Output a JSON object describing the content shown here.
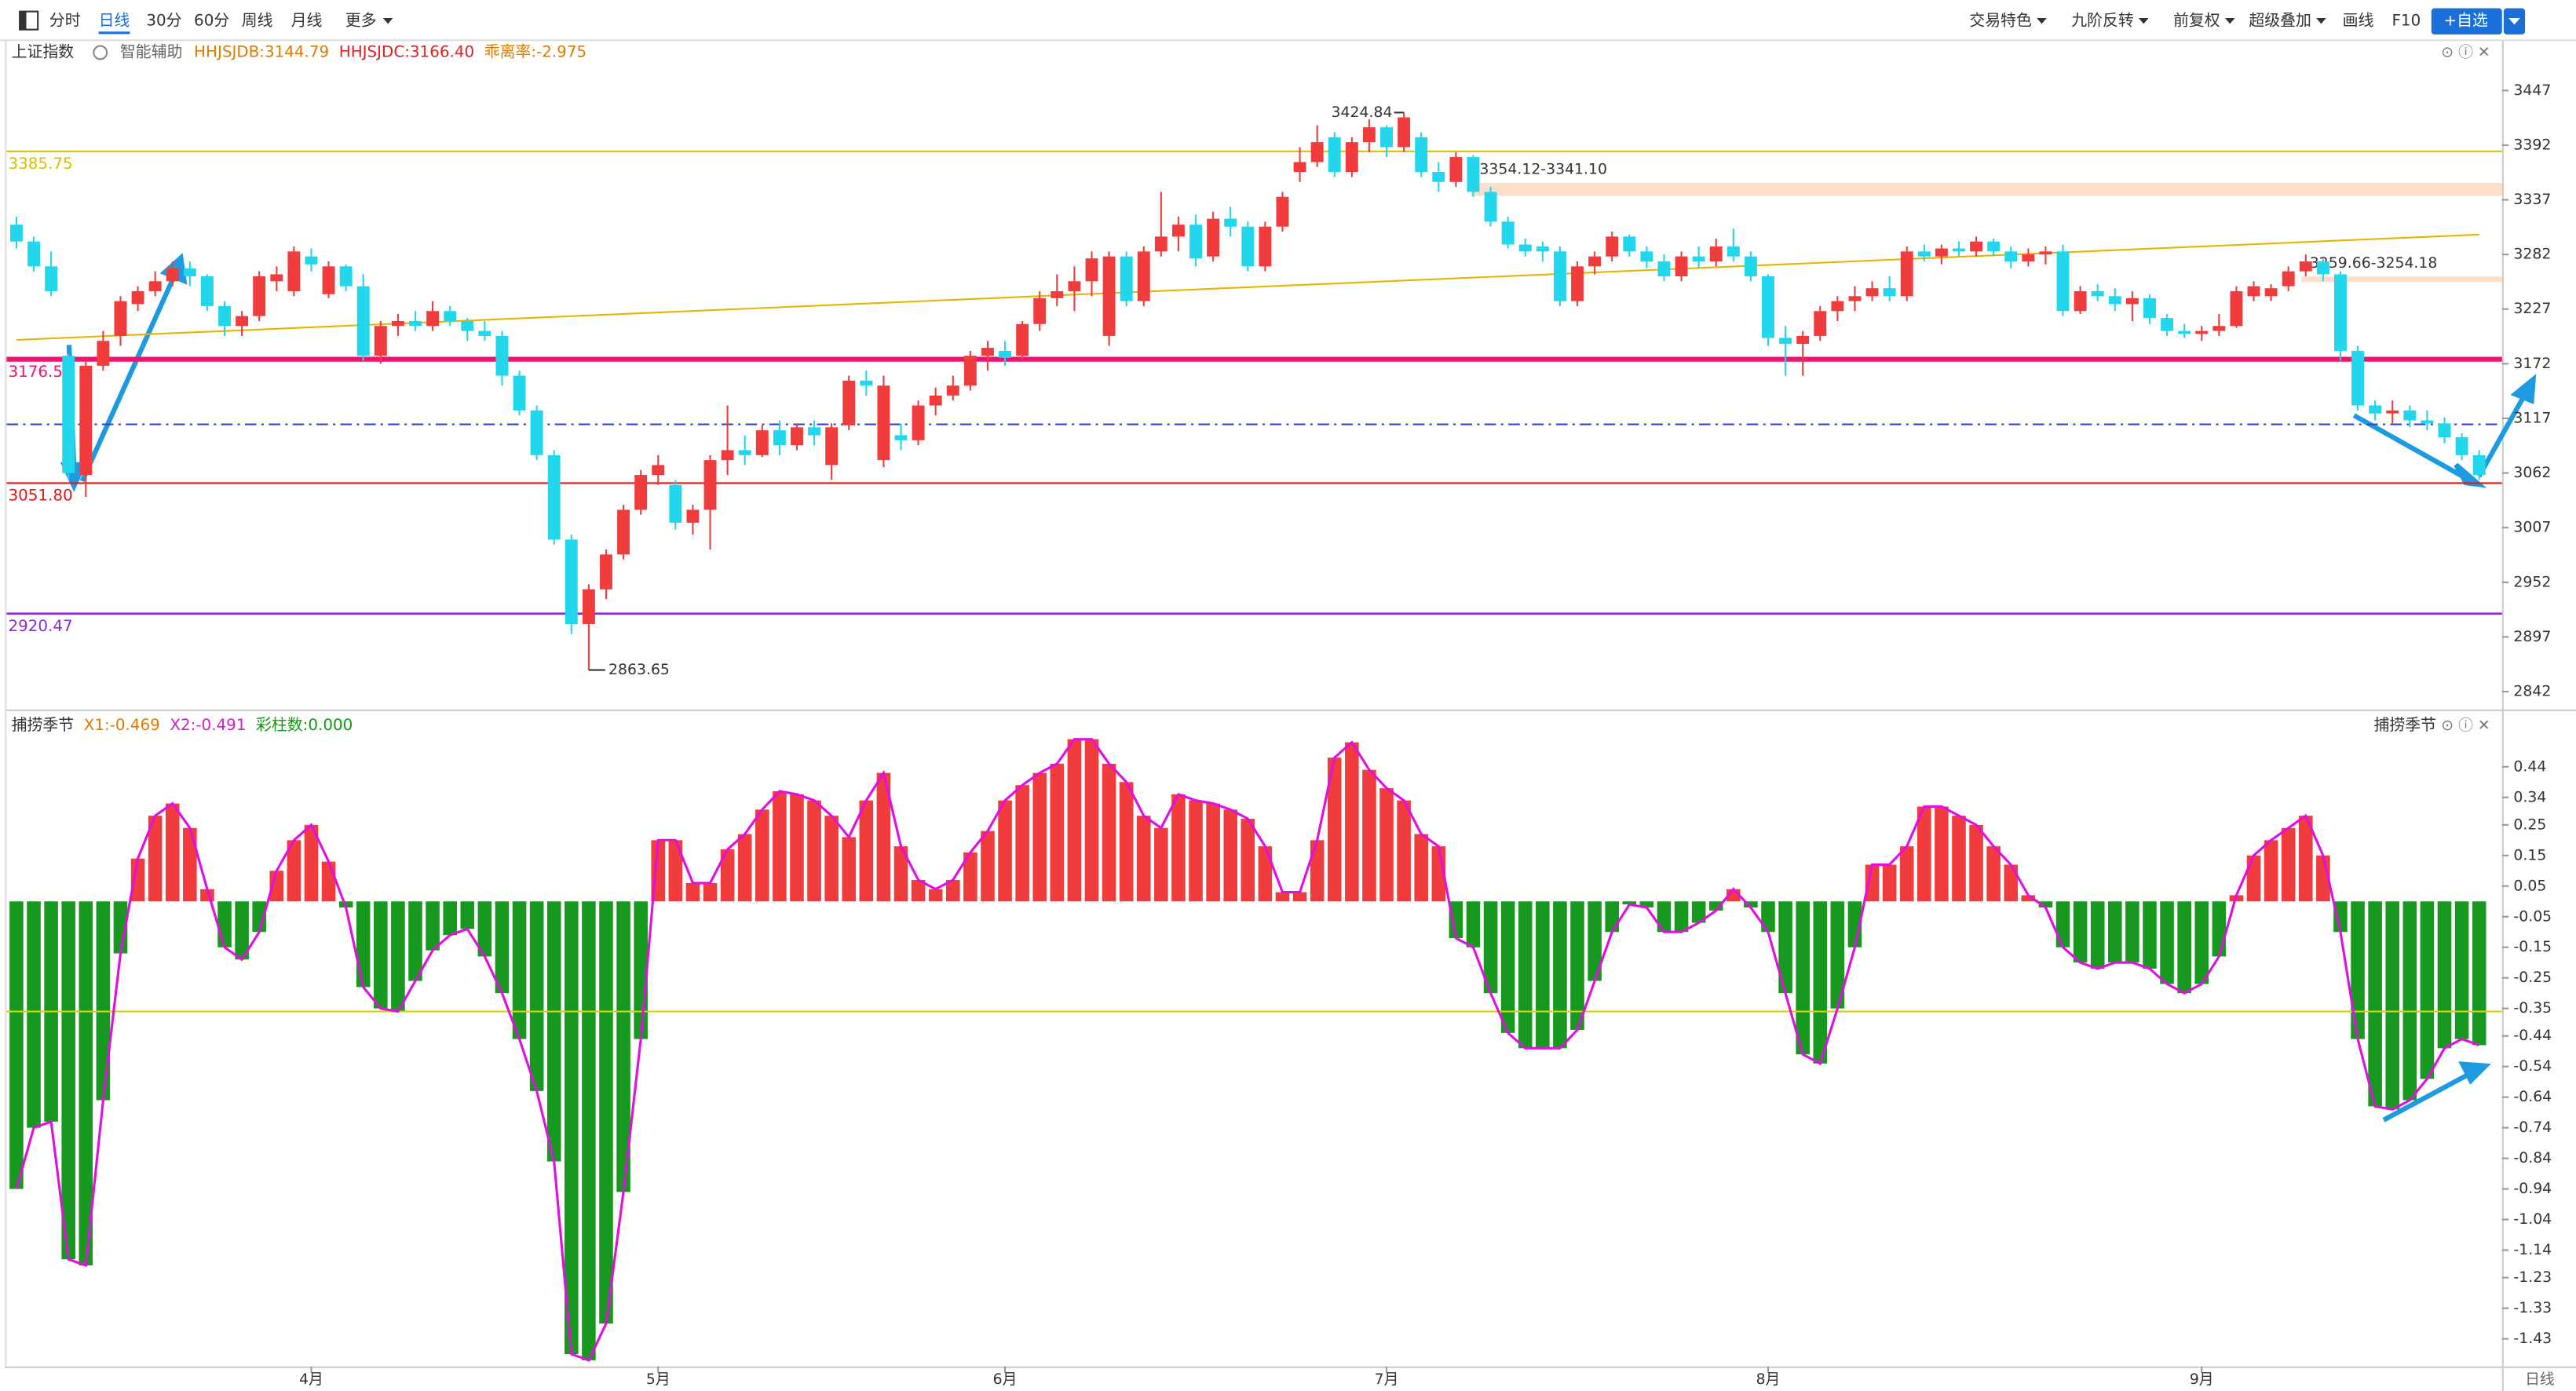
{
  "toolbar": {
    "periods": [
      "分时",
      "日线",
      "30分",
      "60分",
      "周线",
      "月线",
      "更多"
    ],
    "tools": [
      "交易特色",
      "九阶反转",
      "前复权",
      "超级叠加",
      "画线",
      "F10"
    ],
    "button": "+自选"
  },
  "chart_data": [
    {
      "type": "candlestick",
      "title": "上证指数",
      "subtitle": "智能辅助",
      "indicators": [
        {
          "text": "HHJSJDB:3144.79",
          "color": "#e07b00"
        },
        {
          "text": "HHJSJDC:3166.40",
          "color": "#e02020"
        },
        {
          "text": "乖离率:-2.975",
          "color": "#e07b00"
        }
      ],
      "categories": [
        null,
        null,
        null,
        null,
        null,
        null,
        null,
        null,
        null,
        null,
        null,
        null,
        null,
        null,
        null,
        null,
        null,
        "4月",
        null,
        null,
        null,
        null,
        null,
        null,
        null,
        null,
        null,
        null,
        null,
        null,
        null,
        null,
        null,
        null,
        null,
        null,
        null,
        "5月",
        null,
        null,
        null,
        null,
        null,
        null,
        null,
        null,
        null,
        null,
        null,
        null,
        null,
        null,
        null,
        null,
        null,
        null,
        null,
        "6月",
        null,
        null,
        null,
        null,
        null,
        null,
        null,
        null,
        null,
        null,
        null,
        null,
        null,
        null,
        null,
        null,
        null,
        null,
        null,
        null,
        null,
        "7月",
        null,
        null,
        null,
        null,
        null,
        null,
        null,
        null,
        null,
        null,
        null,
        null,
        null,
        null,
        null,
        null,
        null,
        null,
        null,
        null,
        null,
        "8月",
        null,
        null,
        null,
        null,
        null,
        null,
        null,
        null,
        null,
        null,
        null,
        null,
        null,
        null,
        null,
        null,
        null,
        null,
        null,
        null,
        null,
        null,
        null,
        null,
        "9月",
        null,
        null,
        null,
        null,
        null,
        null,
        null,
        null,
        null,
        null,
        null,
        null,
        null,
        null,
        null,
        null
      ],
      "open": [
        3312,
        3295,
        3270,
        3180,
        3060,
        3170,
        3200,
        3232,
        3245,
        3255,
        3268,
        3260,
        3230,
        3210,
        3220,
        3255,
        3245,
        3280,
        3242,
        3270,
        3250,
        3180,
        3210,
        3215,
        3210,
        3225,
        3215,
        3205,
        3200,
        3160,
        3125,
        3080,
        2995,
        2910,
        2945,
        2980,
        3025,
        3060,
        3050,
        3012,
        3025,
        3075,
        3085,
        3080,
        3105,
        3090,
        3108,
        3070,
        3110,
        3155,
        3075,
        3100,
        3095,
        3130,
        3140,
        3150,
        3180,
        3185,
        3180,
        3212,
        3238,
        3245,
        3255,
        3200,
        3280,
        3235,
        3285,
        3300,
        3312,
        3280,
        3318,
        3310,
        3270,
        3310,
        3365,
        3375,
        3400,
        3365,
        3395,
        3410,
        3390,
        3400,
        3365,
        3355,
        3380,
        3345,
        3315,
        3292,
        3290,
        3285,
        3235,
        3270,
        3280,
        3300,
        3285,
        3275,
        3260,
        3280,
        3275,
        3290,
        3280,
        3260,
        3198,
        3192,
        3200,
        3225,
        3235,
        3240,
        3248,
        3240,
        3285,
        3280,
        3288,
        3285,
        3295,
        3285,
        3275,
        3282,
        3285,
        3225,
        3245,
        3240,
        3232,
        3238,
        3218,
        3205,
        3202,
        3205,
        3210,
        3240,
        3240,
        3250,
        3265,
        3275,
        3262,
        3185,
        3130,
        3122,
        3125,
        3115,
        3112,
        3098,
        3080
      ],
      "high": [
        3320,
        3300,
        3285,
        3182,
        3175,
        3205,
        3240,
        3250,
        3265,
        3275,
        3275,
        3262,
        3235,
        3225,
        3265,
        3270,
        3290,
        3288,
        3275,
        3272,
        3262,
        3215,
        3222,
        3225,
        3235,
        3230,
        3218,
        3215,
        3205,
        3165,
        3130,
        3085,
        3000,
        2950,
        2985,
        3030,
        3065,
        3080,
        3055,
        3030,
        3080,
        3130,
        3100,
        3110,
        3115,
        3112,
        3115,
        3112,
        3160,
        3165,
        3160,
        3112,
        3135,
        3148,
        3160,
        3185,
        3195,
        3195,
        3215,
        3245,
        3262,
        3270,
        3285,
        3285,
        3285,
        3290,
        3345,
        3320,
        3322,
        3325,
        3330,
        3315,
        3315,
        3345,
        3390,
        3412,
        3405,
        3400,
        3418,
        3412,
        3424.84,
        3405,
        3375,
        3385,
        3382,
        3350,
        3320,
        3298,
        3295,
        3290,
        3275,
        3285,
        3305,
        3302,
        3290,
        3282,
        3285,
        3290,
        3298,
        3308,
        3285,
        3262,
        3210,
        3205,
        3230,
        3240,
        3250,
        3255,
        3260,
        3290,
        3292,
        3292,
        3295,
        3300,
        3298,
        3290,
        3288,
        3290,
        3292,
        3250,
        3252,
        3248,
        3245,
        3242,
        3222,
        3212,
        3210,
        3222,
        3250,
        3255,
        3252,
        3270,
        3282,
        3278,
        3265,
        3190,
        3135,
        3135,
        3130,
        3125,
        3118,
        3102,
        3085
      ],
      "low": [
        3288,
        3265,
        3240,
        3055,
        3038,
        3165,
        3190,
        3225,
        3240,
        3250,
        3250,
        3225,
        3200,
        3200,
        3215,
        3245,
        3240,
        3265,
        3238,
        3245,
        3175,
        3172,
        3200,
        3205,
        3205,
        3210,
        3195,
        3195,
        3150,
        3120,
        3075,
        2990,
        2900,
        2863.65,
        2935,
        2975,
        3020,
        3050,
        3005,
        3000,
        2985,
        3060,
        3070,
        3078,
        3080,
        3085,
        3090,
        3055,
        3105,
        3140,
        3068,
        3085,
        3090,
        3120,
        3135,
        3145,
        3165,
        3170,
        3175,
        3205,
        3230,
        3225,
        3240,
        3190,
        3230,
        3230,
        3280,
        3285,
        3270,
        3275,
        3300,
        3265,
        3265,
        3305,
        3355,
        3370,
        3360,
        3360,
        3385,
        3380,
        3385,
        3360,
        3345,
        3350,
        3340,
        3310,
        3288,
        3280,
        3275,
        3230,
        3230,
        3262,
        3275,
        3280,
        3268,
        3255,
        3255,
        3268,
        3270,
        3275,
        3255,
        3190,
        3160,
        3160,
        3195,
        3215,
        3225,
        3235,
        3235,
        3235,
        3275,
        3272,
        3280,
        3280,
        3280,
        3268,
        3270,
        3272,
        3220,
        3222,
        3235,
        3225,
        3215,
        3212,
        3200,
        3198,
        3195,
        3200,
        3208,
        3235,
        3235,
        3245,
        3260,
        3255,
        3175,
        3125,
        3115,
        3112,
        3108,
        3105,
        3092,
        3075,
        3055
      ],
      "close": [
        3295,
        3270,
        3245,
        3062,
        3170,
        3195,
        3235,
        3245,
        3255,
        3268,
        3260,
        3230,
        3210,
        3220,
        3260,
        3262,
        3285,
        3272,
        3270,
        3250,
        3180,
        3210,
        3215,
        3210,
        3225,
        3215,
        3205,
        3200,
        3160,
        3125,
        3080,
        2995,
        2910,
        2945,
        2980,
        3025,
        3060,
        3070,
        3012,
        3025,
        3075,
        3085,
        3080,
        3105,
        3090,
        3108,
        3100,
        3108,
        3155,
        3150,
        3150,
        3095,
        3130,
        3140,
        3150,
        3180,
        3188,
        3178,
        3212,
        3238,
        3245,
        3255,
        3278,
        3280,
        3235,
        3285,
        3300,
        3312,
        3278,
        3318,
        3310,
        3270,
        3310,
        3340,
        3375,
        3395,
        3365,
        3395,
        3410,
        3390,
        3420,
        3365,
        3355,
        3380,
        3345,
        3315,
        3292,
        3285,
        3285,
        3235,
        3270,
        3280,
        3300,
        3285,
        3275,
        3260,
        3280,
        3275,
        3290,
        3280,
        3260,
        3198,
        3192,
        3200,
        3225,
        3235,
        3240,
        3248,
        3240,
        3285,
        3280,
        3288,
        3285,
        3295,
        3285,
        3275,
        3282,
        3285,
        3225,
        3245,
        3240,
        3232,
        3238,
        3218,
        3205,
        3202,
        3205,
        3210,
        3245,
        3250,
        3248,
        3265,
        3275,
        3262,
        3185,
        3130,
        3122,
        3125,
        3115,
        3112,
        3098,
        3080,
        3060
      ],
      "up_color": "#f03c3c",
      "down_color": "#22d6ec",
      "ylim": [
        2824,
        3472
      ],
      "yticks": [
        3447,
        3392,
        3337,
        3282,
        3227,
        3172,
        3117,
        3062,
        3007,
        2952,
        2897,
        2842
      ],
      "hlines": [
        {
          "value": 3385.75,
          "label": "3385.75",
          "color": "#d8c200",
          "width": 1
        },
        {
          "value": 3176.55,
          "label": "3176.55",
          "color": "#ee1472",
          "width": 3
        },
        {
          "value": 3051.8,
          "label": "3051.80",
          "color": "#e01818",
          "width": 1
        },
        {
          "value": 2920.47,
          "label": "2920.47",
          "color": "#8a2be2",
          "width": 1.2
        }
      ],
      "dash_line": {
        "value": 3111,
        "color": "#3344cc"
      },
      "bands": [
        {
          "low": 3341.1,
          "high": 3354.12,
          "label": "3354.12-3341.10",
          "color": "#fcd6bc"
        },
        {
          "low": 3254.18,
          "high": 3259.66,
          "label": "3259.66-3254.18",
          "color": "#fcd6bc"
        }
      ],
      "max_label": 3424.84,
      "min_label": 2863.65,
      "trendline": [
        3196,
        3302
      ],
      "trend_color": "#e8b400"
    },
    {
      "type": "bar",
      "title": "捕捞季节",
      "legend": [
        {
          "text": "X1:-0.469",
          "color": "#e07b00"
        },
        {
          "text": "X2:-0.491",
          "color": "#d020d0"
        },
        {
          "text": "彩柱数:0.000",
          "color": "#119911"
        }
      ],
      "values": [
        -0.94,
        -0.74,
        -0.72,
        -1.17,
        -1.19,
        -0.65,
        -0.17,
        0.14,
        0.28,
        0.32,
        0.24,
        0.04,
        -0.15,
        -0.19,
        -0.1,
        0.1,
        0.2,
        0.25,
        0.13,
        -0.02,
        -0.28,
        -0.35,
        -0.36,
        -0.26,
        -0.16,
        -0.11,
        -0.09,
        -0.18,
        -0.3,
        -0.45,
        -0.62,
        -0.85,
        -1.48,
        -1.5,
        -1.38,
        -0.95,
        -0.45,
        0.2,
        0.2,
        0.06,
        0.06,
        0.17,
        0.22,
        0.3,
        0.36,
        0.35,
        0.33,
        0.28,
        0.21,
        0.33,
        0.42,
        0.18,
        0.07,
        0.04,
        0.07,
        0.16,
        0.23,
        0.33,
        0.38,
        0.42,
        0.45,
        0.53,
        0.53,
        0.45,
        0.39,
        0.28,
        0.24,
        0.35,
        0.33,
        0.32,
        0.3,
        0.27,
        0.18,
        0.03,
        0.03,
        0.2,
        0.47,
        0.52,
        0.43,
        0.37,
        0.33,
        0.22,
        0.18,
        -0.12,
        -0.15,
        -0.3,
        -0.43,
        -0.48,
        -0.48,
        -0.48,
        -0.42,
        -0.26,
        -0.1,
        -0.01,
        -0.02,
        -0.1,
        -0.1,
        -0.07,
        -0.03,
        0.04,
        -0.02,
        -0.1,
        -0.3,
        -0.5,
        -0.53,
        -0.35,
        -0.15,
        0.12,
        0.12,
        0.18,
        0.31,
        0.31,
        0.28,
        0.25,
        0.18,
        0.12,
        0.02,
        -0.02,
        -0.15,
        -0.2,
        -0.22,
        -0.2,
        -0.2,
        -0.22,
        -0.27,
        -0.3,
        -0.27,
        -0.18,
        0.02,
        0.15,
        0.2,
        0.24,
        0.28,
        0.15,
        -0.1,
        -0.45,
        -0.67,
        -0.68,
        -0.65,
        -0.58,
        -0.48,
        -0.45,
        -0.47
      ],
      "pos_color": "#f03c3c",
      "neg_color": "#17991f",
      "line_color": "#e010e0",
      "ylim": [
        -1.52,
        0.52
      ],
      "yticks": [
        0.44,
        0.34,
        0.25,
        0.15,
        0.05,
        -0.05,
        -0.15,
        -0.25,
        -0.35,
        -0.44,
        -0.54,
        -0.64,
        -0.74,
        -0.84,
        -0.94,
        -1.04,
        -1.14,
        -1.23,
        -1.33,
        -1.43
      ],
      "hline": -0.36,
      "hline_color": "#d8d200"
    }
  ],
  "footer": "日线"
}
